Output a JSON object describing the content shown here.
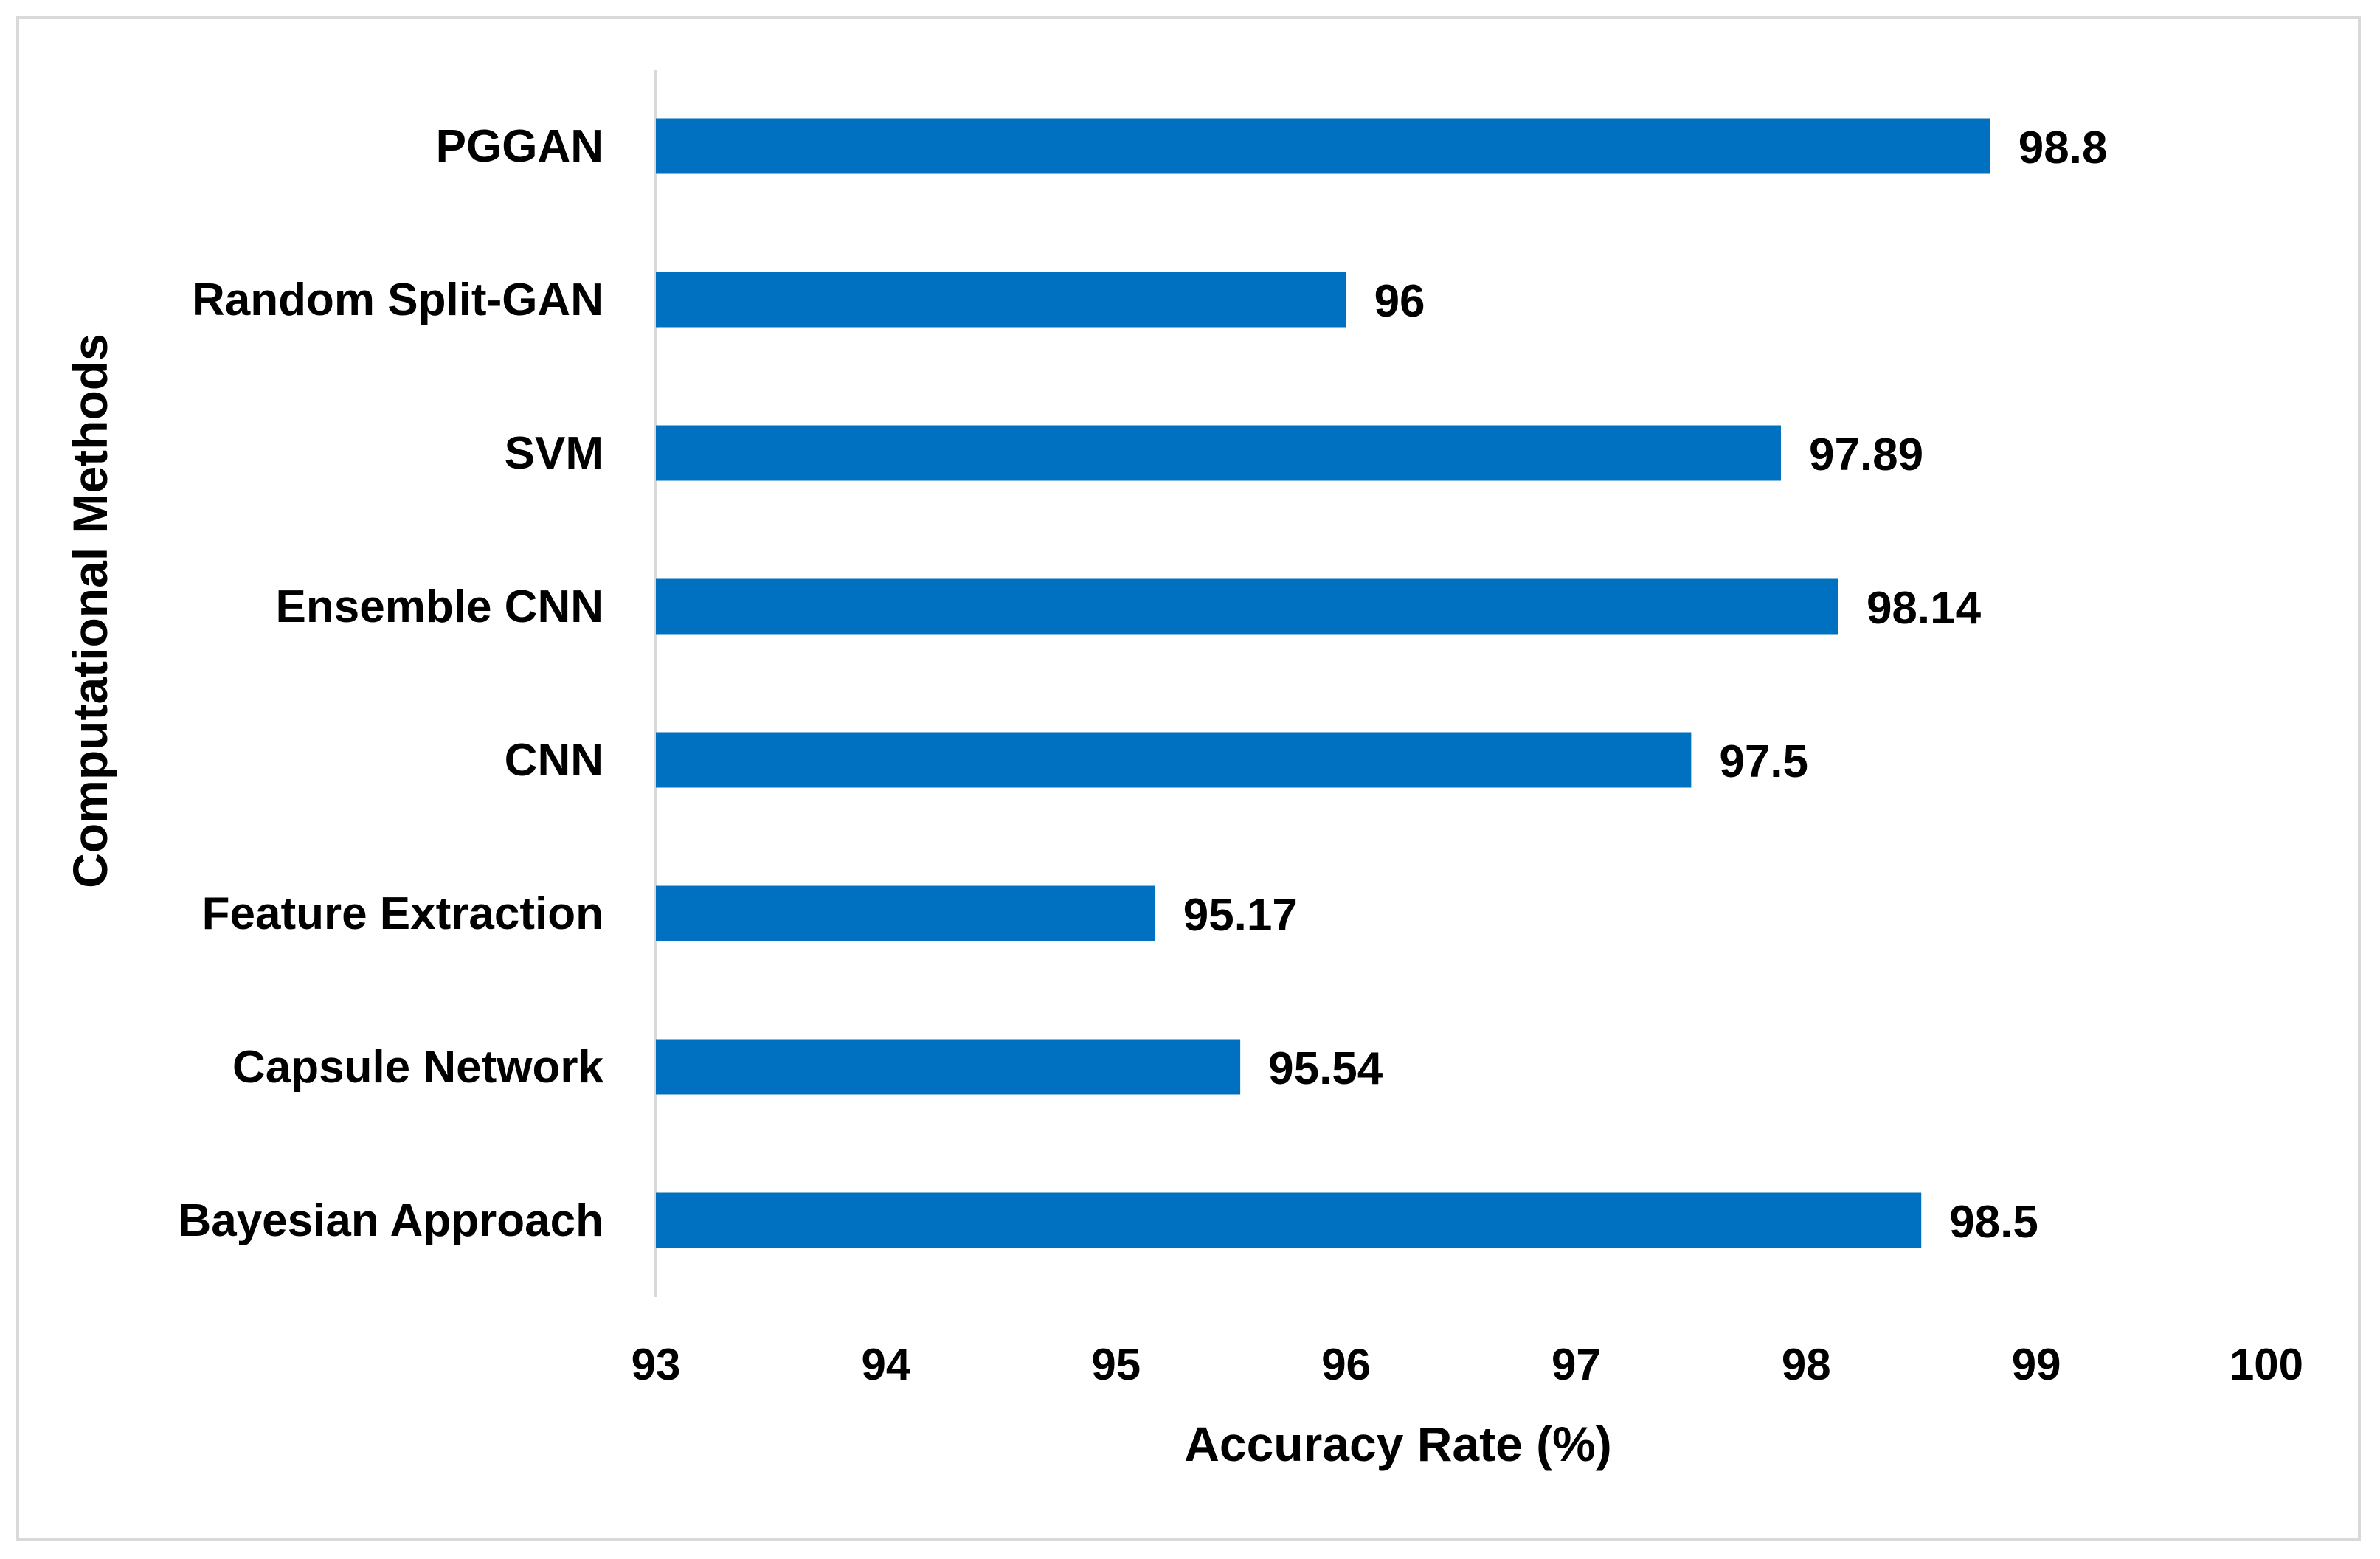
{
  "chart_data": {
    "type": "bar",
    "orientation": "horizontal",
    "title": "",
    "xlabel": "Accuracy Rate (%)",
    "ylabel": "Computational Methods",
    "categories": [
      "PGGAN",
      "Random Split-GAN",
      "SVM",
      "Ensemble CNN",
      "CNN",
      "Feature Extraction",
      "Capsule Network",
      "Bayesian Approach"
    ],
    "values": [
      98.8,
      96,
      97.89,
      98.14,
      97.5,
      95.17,
      95.54,
      98.5
    ],
    "value_labels": [
      "98.8",
      "96",
      "97.89",
      "98.14",
      "97.5",
      "95.17",
      "95.54",
      "98.5"
    ],
    "xlim": [
      93,
      100
    ],
    "xticks": [
      "93",
      "94",
      "95",
      "96",
      "97",
      "98",
      "99",
      "100"
    ],
    "grid": false,
    "legend": "none",
    "colors": {
      "bar": "#0070C0",
      "axis": "#d9d9d9",
      "frame": "#d9d9d9"
    }
  }
}
